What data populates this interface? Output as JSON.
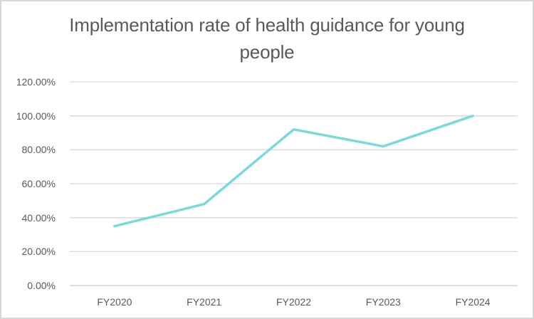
{
  "chart_data": {
    "type": "line",
    "title": "Implementation rate of health guidance for young people",
    "categories": [
      "FY2020",
      "FY2021",
      "FY2022",
      "FY2023",
      "FY2024"
    ],
    "values": [
      35,
      48,
      92,
      82,
      100
    ],
    "unit": "%",
    "xlabel": "",
    "ylabel": "",
    "ylim": [
      0,
      120
    ],
    "y_tick_step": 20,
    "y_tick_labels": [
      "0.00%",
      "20.00%",
      "40.00%",
      "60.00%",
      "80.00%",
      "100.00%",
      "120.00%"
    ],
    "grid": true,
    "legend": false,
    "colors": {
      "line": "#7dd8db",
      "grid": "#d9d9d9",
      "axis": "#c9c9c9",
      "text": "#595959",
      "border": "#d6d6d6",
      "background": "#ffffff"
    }
  }
}
